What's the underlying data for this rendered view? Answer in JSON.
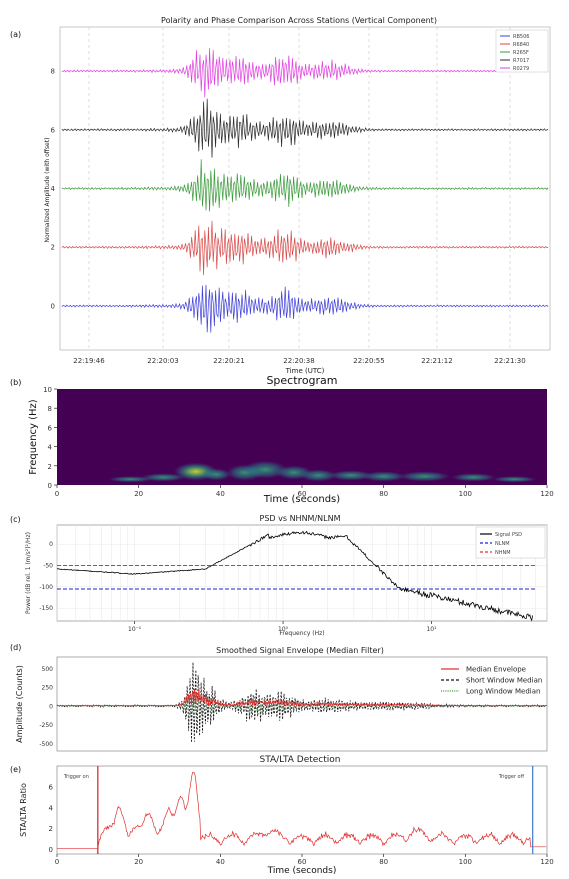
{
  "panel_labels": [
    "(a)",
    "(b)",
    "(c)",
    "(d)",
    "(e)"
  ],
  "colors": {
    "RB506": "#3f3fd9",
    "R6840": "#d84a4a",
    "R265F": "#3a9a3a",
    "R7017": "#2b2b2b",
    "R0279": "#e040e0",
    "spec_bg": "#440154",
    "psd": "#000000",
    "nlnm": "#2020d0",
    "nhnm": "#d83a2a",
    "median": "#e03030",
    "short": "#111111",
    "long": "#2e9a2e",
    "stalta": "#e03030",
    "trig_on": "#d02020",
    "trig_off": "#3a7ad0"
  },
  "chart_data": [
    {
      "type": "line",
      "title": "Polarity and Phase Comparison Across Stations (Vertical Component)",
      "xlabel": "Time (UTC)",
      "ylabel": "Normalized Amplitude (with offset)",
      "x_ticks": [
        "22:19:46",
        "22:20:03",
        "22:20:21",
        "22:20:38",
        "22:20:55",
        "22:21:12",
        "22:21:30"
      ],
      "y_ticks": [
        0,
        2,
        4,
        6,
        8
      ],
      "ylim": [
        -1.5,
        9.5
      ],
      "grid": true,
      "legend_position": "top-right",
      "series": [
        {
          "name": "RB506",
          "offset": 0
        },
        {
          "name": "R6840",
          "offset": 2
        },
        {
          "name": "R265F",
          "offset": 4
        },
        {
          "name": "R7017",
          "offset": 6
        },
        {
          "name": "R0279",
          "offset": 8
        }
      ]
    },
    {
      "type": "heatmap",
      "title": "Spectrogram",
      "xlabel": "Time (seconds)",
      "ylabel": "Frequency (Hz)",
      "xlim": [
        0,
        120
      ],
      "ylim": [
        0,
        10
      ],
      "x_ticks": [
        0,
        20,
        40,
        60,
        80,
        100,
        120
      ],
      "y_ticks": [
        0,
        2,
        4,
        6,
        8,
        10
      ]
    },
    {
      "type": "line",
      "title": "PSD vs NHNM/NLNM",
      "xlabel": "Frequency (Hz)",
      "ylabel": "Power (dB rel. 1 (m/s²)²/Hz)",
      "x_scale": "log",
      "xlim": [
        0.03,
        60
      ],
      "ylim": [
        -180,
        45
      ],
      "x_tick_labels": [
        "10⁻¹",
        "10⁰",
        "10¹"
      ],
      "x_tick_values": [
        0.1,
        1,
        10
      ],
      "y_ticks": [
        -150,
        -100,
        -50,
        0
      ],
      "legend_position": "top-right",
      "series": [
        {
          "name": "Signal PSD"
        },
        {
          "name": "NLNM",
          "value": -105
        },
        {
          "name": "NHNM",
          "value": -50
        }
      ]
    },
    {
      "type": "line",
      "title": "Smoothed Signal Envelope (Median Filter)",
      "xlabel": "",
      "ylabel": "Amplitude (Counts)",
      "xlim": [
        0,
        120
      ],
      "ylim": [
        -600,
        650
      ],
      "y_ticks": [
        -500,
        -250,
        0,
        250,
        500
      ],
      "legend_position": "top-right",
      "series": [
        {
          "name": "Median Envelope"
        },
        {
          "name": "Short Window Median"
        },
        {
          "name": "Long Window Median"
        }
      ]
    },
    {
      "type": "line",
      "title": "STA/LTA Detection",
      "xlabel": "Time (seconds)",
      "ylabel": "STA/LTA Ratio",
      "xlim": [
        0,
        120
      ],
      "ylim": [
        -0.5,
        8
      ],
      "x_ticks": [
        0,
        20,
        40,
        60,
        80,
        100,
        120
      ],
      "y_ticks": [
        0,
        2,
        4,
        6
      ],
      "annotations": [
        {
          "text": "Trigger on",
          "x": 10
        },
        {
          "text": "Trigger off",
          "x": 116.5
        }
      ]
    }
  ]
}
